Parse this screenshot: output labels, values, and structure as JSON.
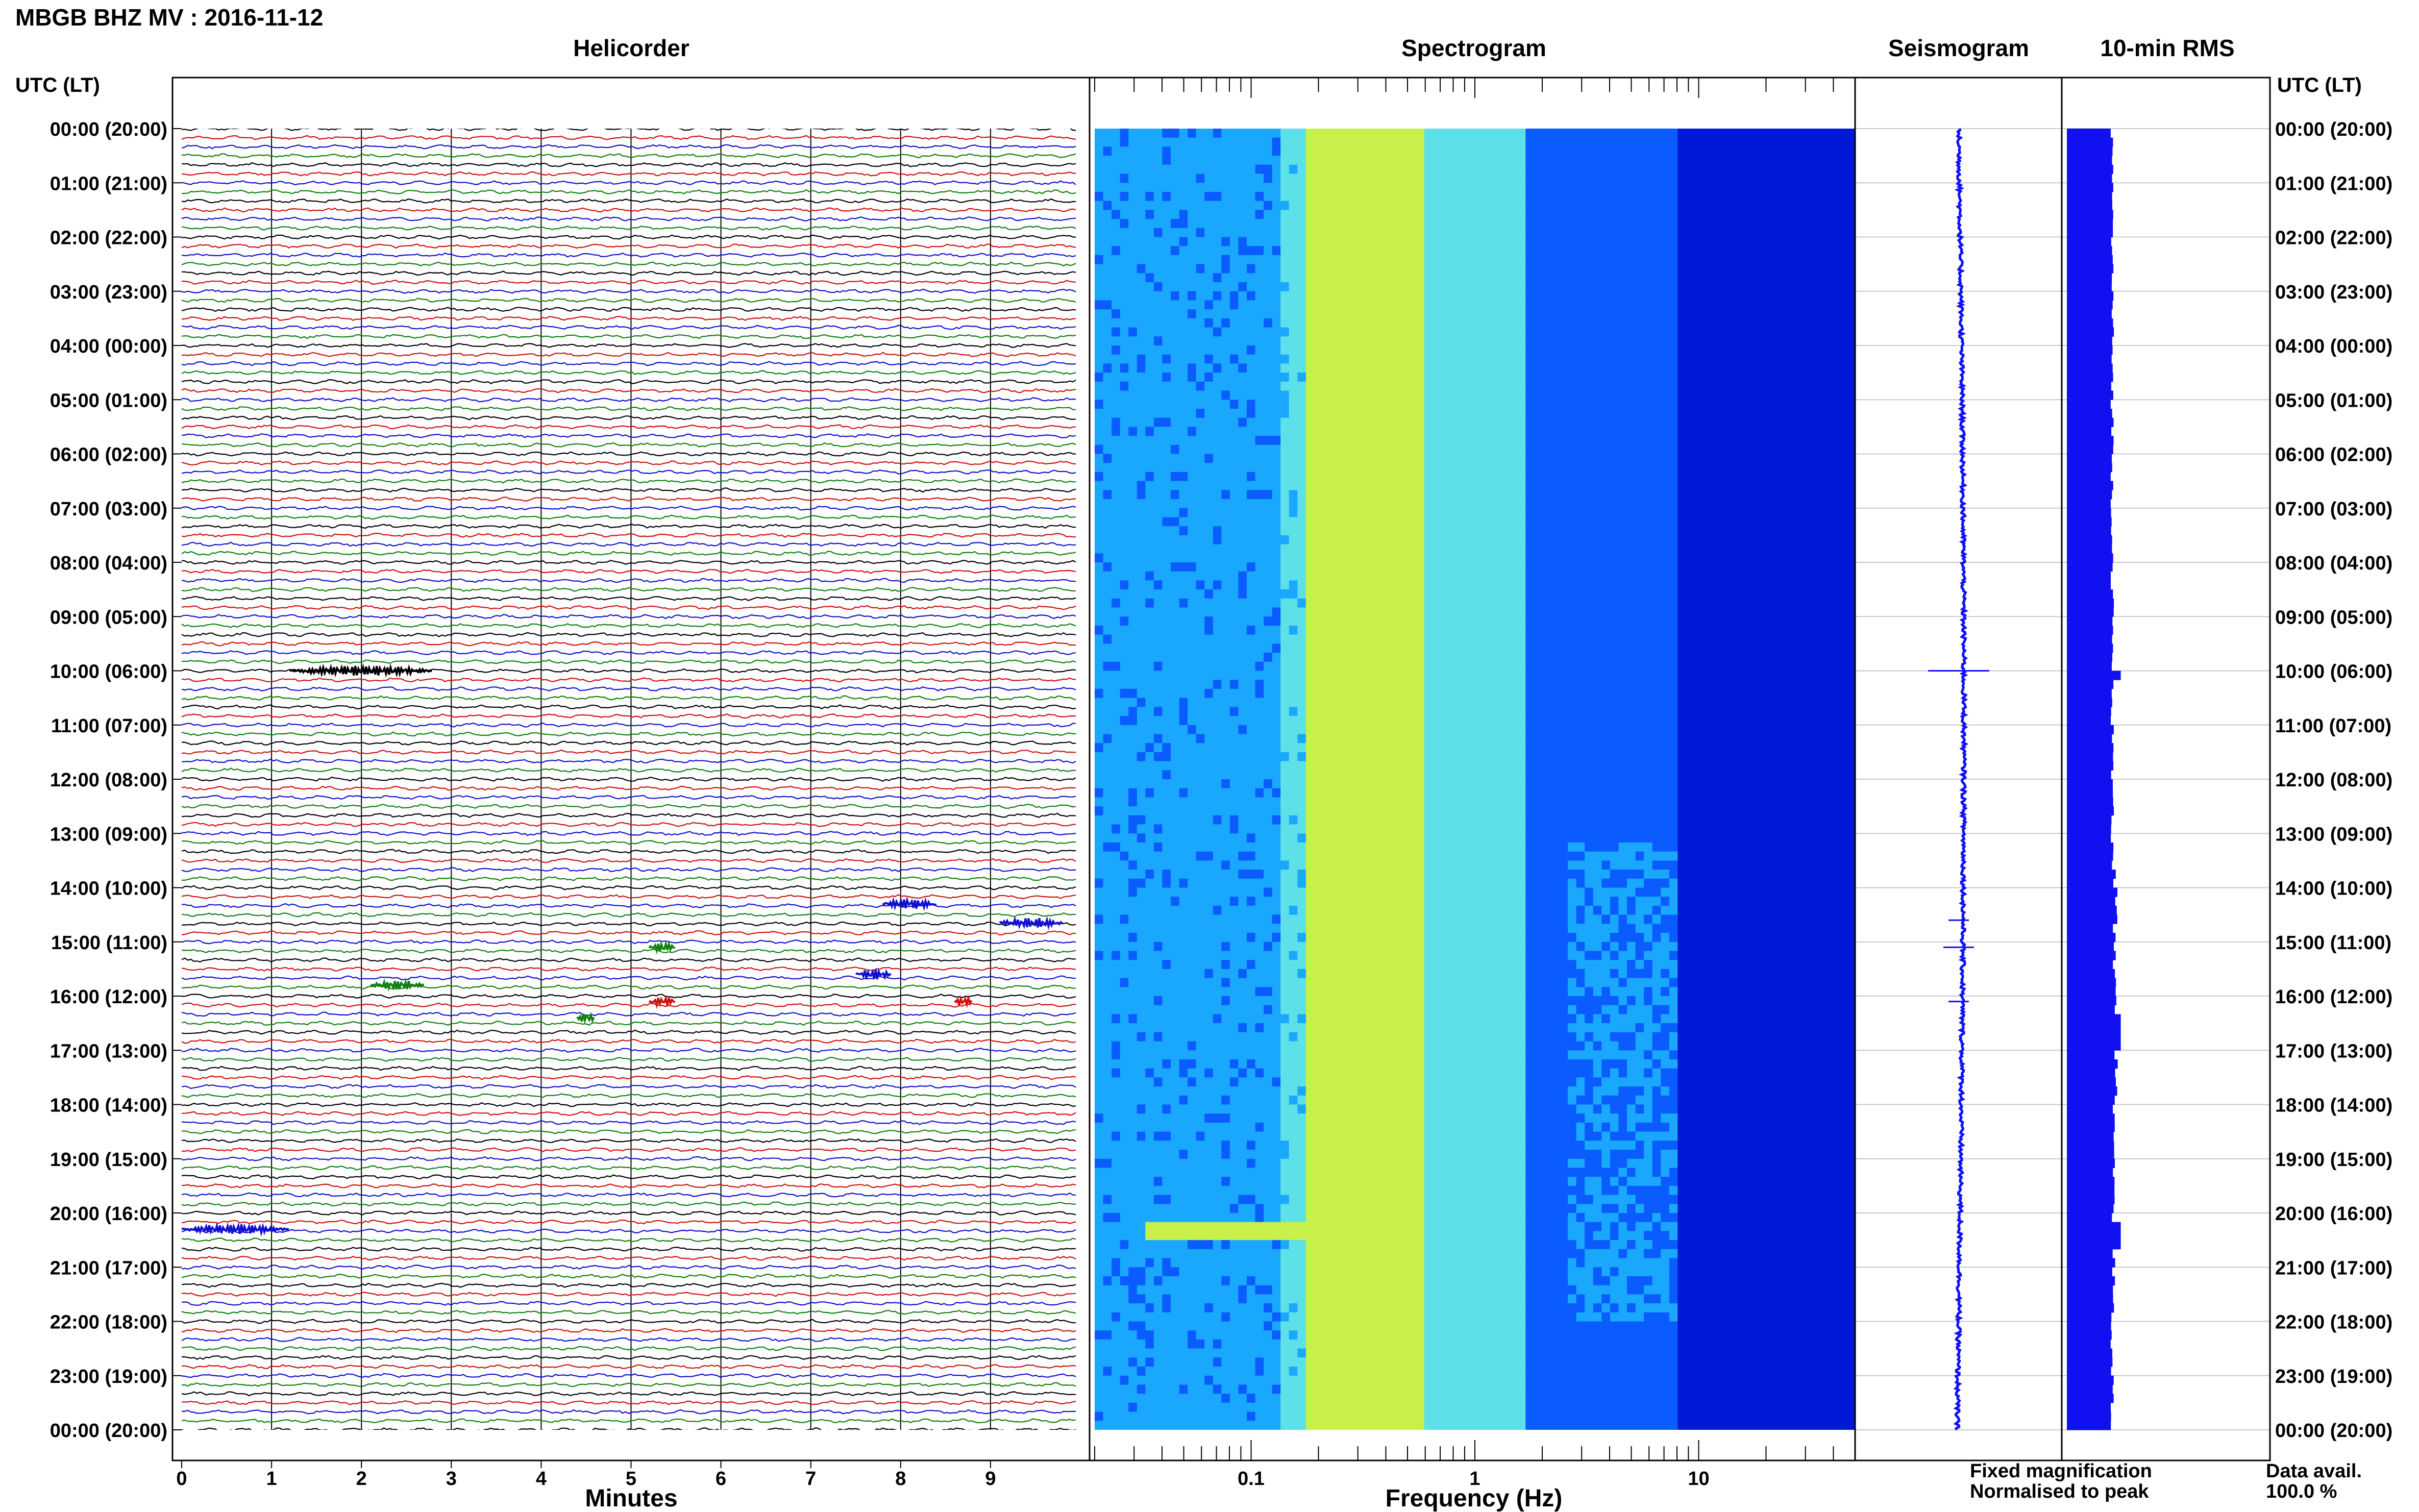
{
  "header": {
    "title": "MBGB BHZ MV : 2016-11-12",
    "left_axis_label": "UTC (LT)",
    "right_axis_label": "UTC (LT)"
  },
  "panels": {
    "helicorder": "Helicorder",
    "spectrogram": "Spectrogram",
    "seismogram": "Seismogram",
    "rms": "10-min RMS"
  },
  "axes": {
    "minutes_label": "Minutes",
    "frequency_label": "Frequency (Hz)"
  },
  "legend": {
    "fixed": "Fixed magnification",
    "normalised": "Normalised to peak",
    "fixed_color": "#1010ff",
    "normalised_color": "#ff1010"
  },
  "availability": {
    "label": "Data avail.",
    "value": "100.0 %"
  },
  "chart_data": [
    {
      "type": "line",
      "title": "Helicorder",
      "xlabel": "Minutes",
      "ylabel": "UTC (LT)",
      "xlim": [
        0,
        10
      ],
      "x_ticks": [
        "0",
        "1",
        "2",
        "3",
        "4",
        "5",
        "6",
        "7",
        "8",
        "9"
      ],
      "time_labels": [
        "00:00 (20:00)",
        "01:00 (21:00)",
        "02:00 (22:00)",
        "03:00 (23:00)",
        "04:00 (00:00)",
        "05:00 (01:00)",
        "06:00 (02:00)",
        "07:00 (03:00)",
        "08:00 (04:00)",
        "09:00 (05:00)",
        "10:00 (06:00)",
        "11:00 (07:00)",
        "12:00 (08:00)",
        "13:00 (09:00)",
        "14:00 (10:00)",
        "15:00 (11:00)",
        "16:00 (12:00)",
        "17:00 (13:00)",
        "18:00 (14:00)",
        "19:00 (15:00)",
        "20:00 (16:00)",
        "21:00 (17:00)",
        "22:00 (18:00)",
        "23:00 (19:00)",
        "00:00 (20:00)"
      ],
      "trace_colors": [
        "#000000",
        "#d01010",
        "#1010d0",
        "#108010"
      ],
      "lines_per_hour": 6,
      "events": [
        {
          "hour": 10.0,
          "minute_start": 1.2,
          "minute_end": 2.8,
          "color": "#000000"
        },
        {
          "hour": 14.3,
          "minute_start": 7.8,
          "minute_end": 8.4,
          "color": "#1010d0"
        },
        {
          "hour": 14.65,
          "minute_start": 9.1,
          "minute_end": 9.8,
          "color": "#1010d0"
        },
        {
          "hour": 15.1,
          "minute_start": 5.2,
          "minute_end": 5.5,
          "color": "#108010"
        },
        {
          "hour": 15.6,
          "minute_start": 7.5,
          "minute_end": 7.9,
          "color": "#1010d0"
        },
        {
          "hour": 15.8,
          "minute_start": 2.1,
          "minute_end": 2.7,
          "color": "#108010"
        },
        {
          "hour": 16.1,
          "minute_start": 5.2,
          "minute_end": 5.5,
          "color": "#d01010"
        },
        {
          "hour": 16.1,
          "minute_start": 8.6,
          "minute_end": 8.8,
          "color": "#d01010"
        },
        {
          "hour": 16.4,
          "minute_start": 4.4,
          "minute_end": 4.6,
          "color": "#108010"
        },
        {
          "hour": 20.3,
          "minute_start": 0.0,
          "minute_end": 1.2,
          "color": "#1010d0"
        }
      ]
    },
    {
      "type": "heatmap",
      "title": "Spectrogram",
      "xlabel": "Frequency (Hz)",
      "x_scale": "log",
      "xlim": [
        0.02,
        50
      ],
      "x_ticks": [
        "0.1",
        "1",
        "10"
      ],
      "colormap": [
        "#00008a",
        "#0019d6",
        "#0a5cff",
        "#1aa8ff",
        "#5ee0e8",
        "#c8f04a"
      ]
    },
    {
      "type": "line",
      "title": "Seismogram"
    },
    {
      "type": "bar",
      "title": "10-min RMS",
      "orientation": "horizontal",
      "color": "#1010f0"
    }
  ]
}
